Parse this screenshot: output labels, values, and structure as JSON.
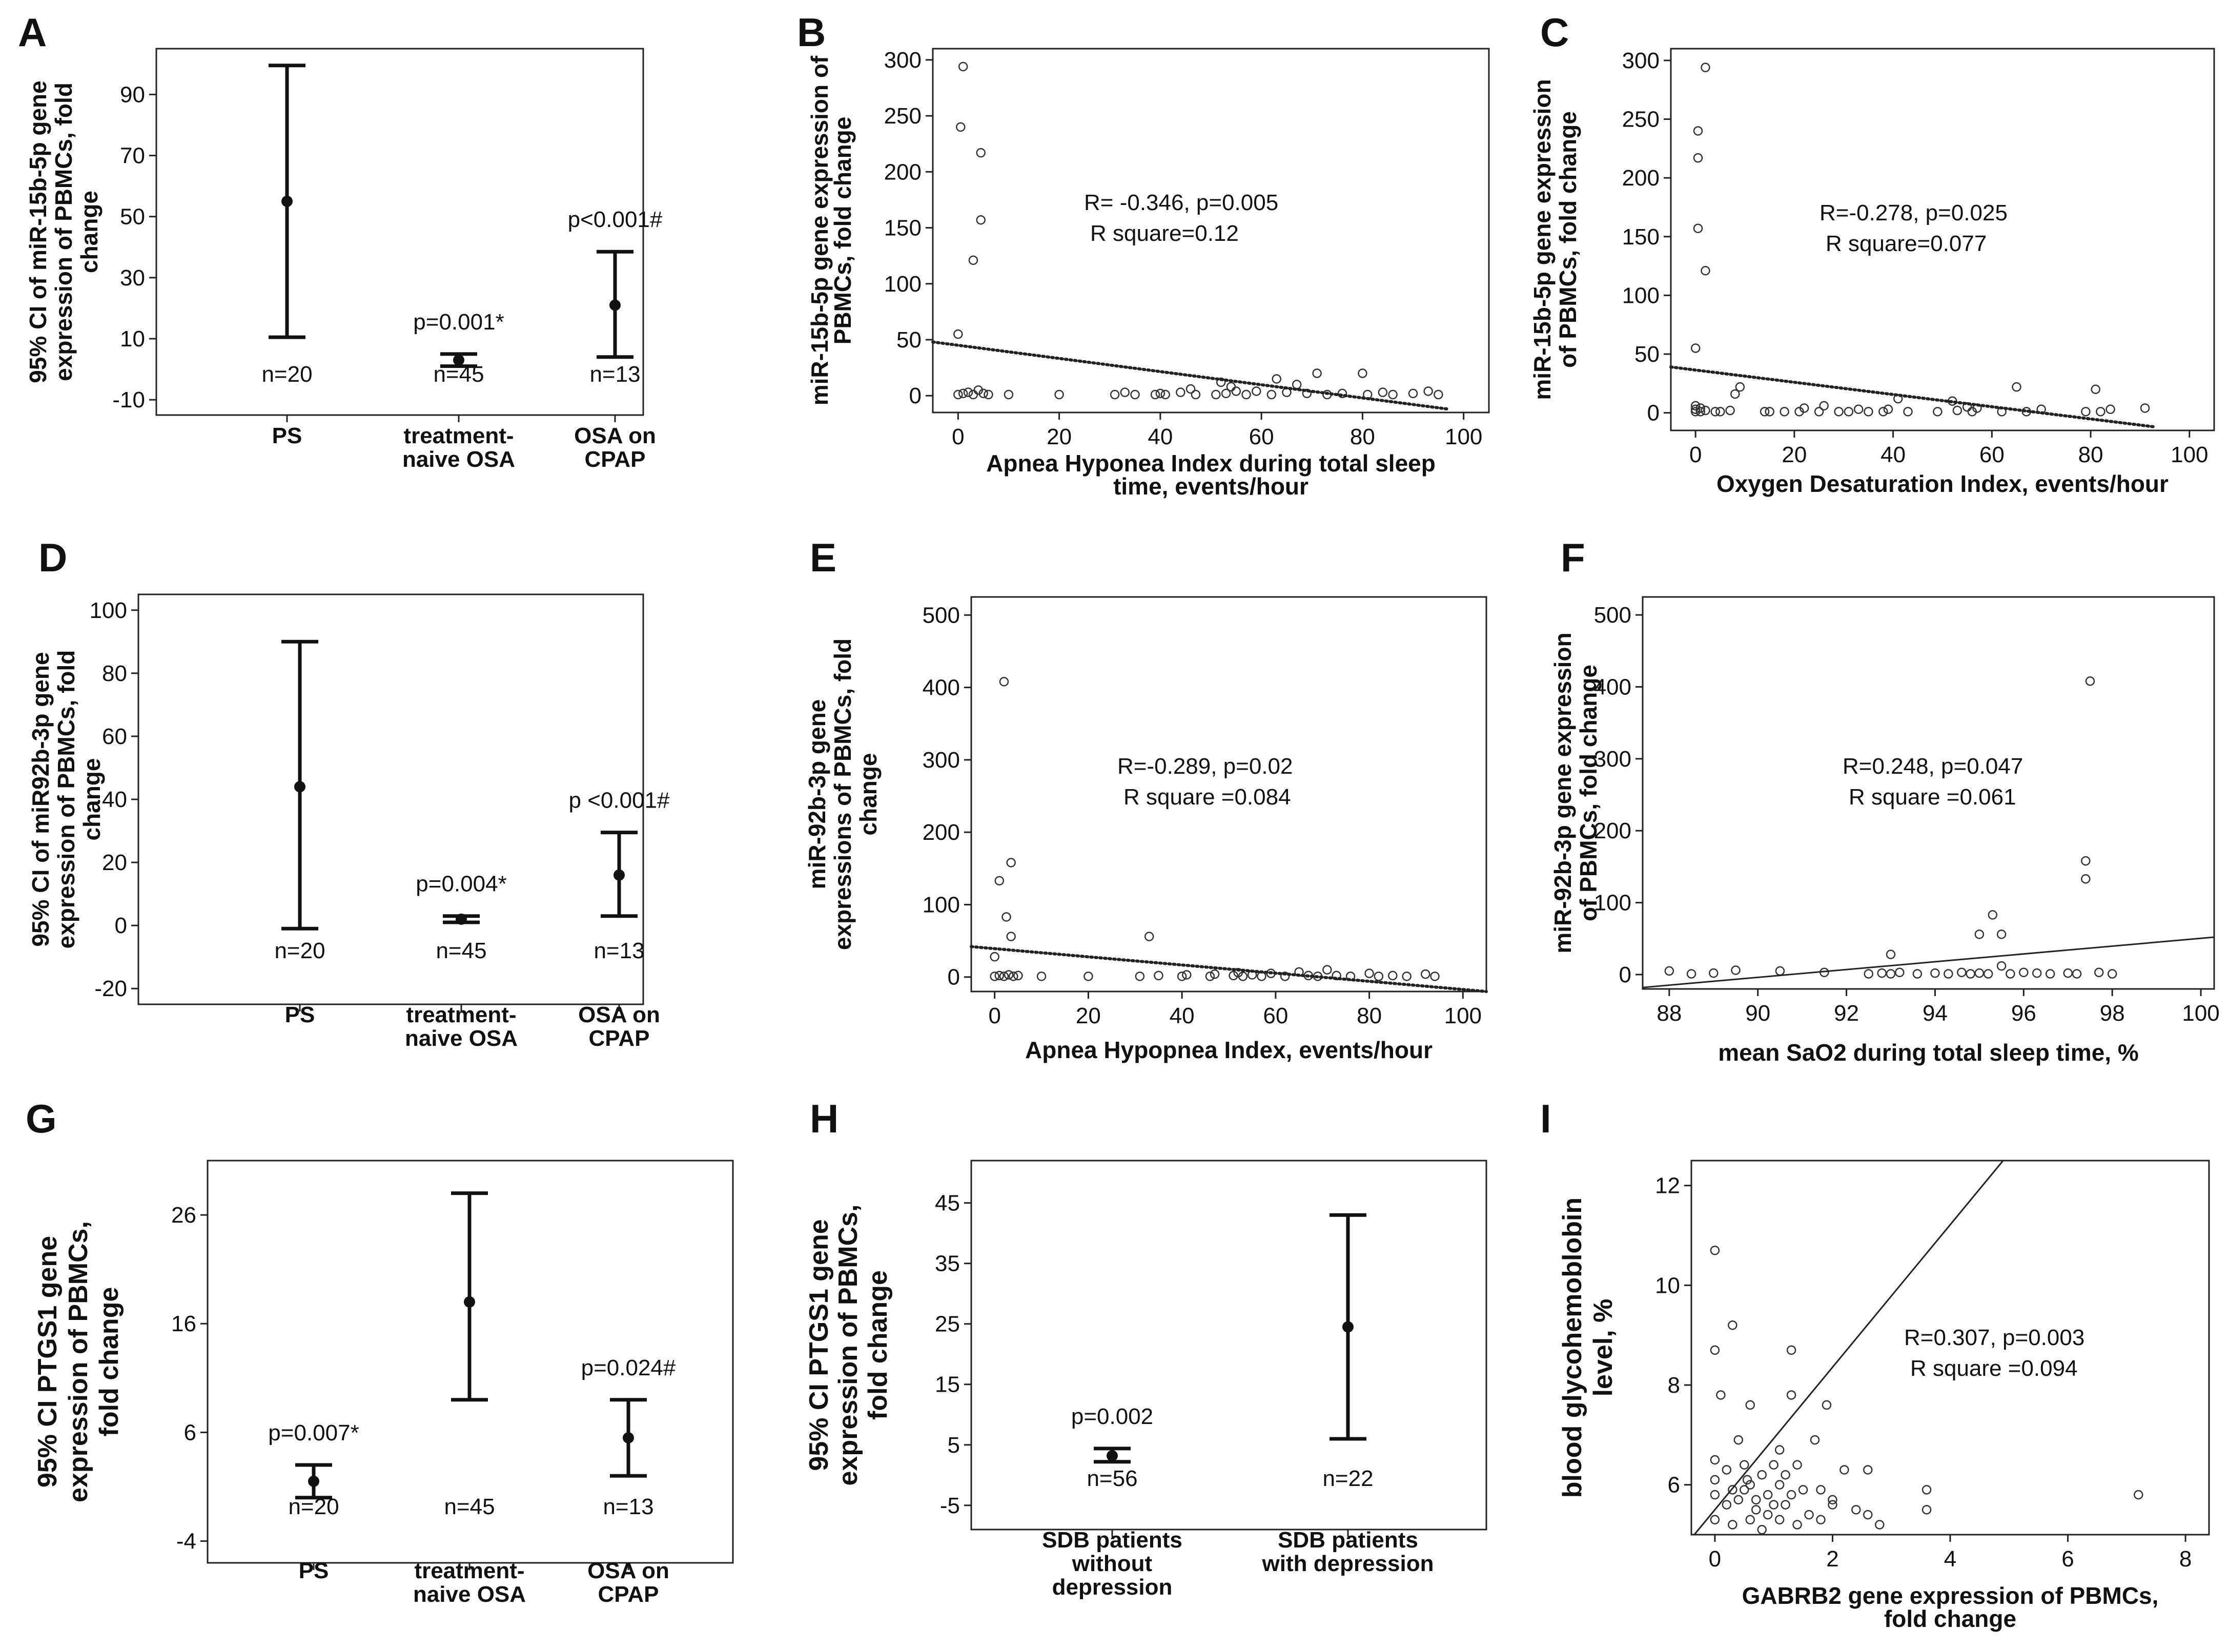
{
  "chart_data": [
    {
      "panel": "A",
      "type": "errorbar",
      "ylabel": "95% CI of miR-15b-5p gene expression of PBMCs, fold change",
      "ylim": [
        -15,
        105
      ],
      "yticks": [
        -10,
        10,
        30,
        50,
        70,
        90
      ],
      "categories": [
        "PS",
        "treatment-naive OSA",
        "OSA on CPAP"
      ],
      "values": [
        {
          "mean": 55,
          "low": 10.5,
          "high": 99.5,
          "n": "n=20",
          "note": ""
        },
        {
          "mean": 3,
          "low": 1,
          "high": 5,
          "n": "n=45",
          "note": "p=0.001*"
        },
        {
          "mean": 21,
          "low": 4,
          "high": 38.5,
          "n": "n=13",
          "note": "p<0.001#"
        }
      ]
    },
    {
      "panel": "B",
      "type": "scatter",
      "xlabel": "Apnea Hyponea Index during total sleep time, events/hour",
      "ylabel": "miR-15b-5p gene expression of PBMCs, fold change",
      "xlim": [
        -5,
        105
      ],
      "ylim": [
        -15,
        310
      ],
      "xticks": [
        0,
        20,
        40,
        60,
        80,
        100
      ],
      "yticks": [
        0,
        50,
        100,
        150,
        200,
        250,
        300
      ],
      "annotation": [
        "R= -0.346, p=0.005",
        "R square=0.12"
      ],
      "fit": {
        "style": "dotted",
        "x": [
          -5,
          97
        ],
        "y": [
          48,
          -12
        ]
      },
      "points": [
        [
          1,
          294
        ],
        [
          0.5,
          240
        ],
        [
          4.5,
          217
        ],
        [
          4.5,
          157
        ],
        [
          3,
          121
        ],
        [
          0,
          55
        ],
        [
          0,
          1
        ],
        [
          1,
          2
        ],
        [
          2,
          3
        ],
        [
          3,
          1
        ],
        [
          4,
          5
        ],
        [
          5,
          2
        ],
        [
          6,
          1
        ],
        [
          10,
          1
        ],
        [
          20,
          1
        ],
        [
          31,
          1
        ],
        [
          33,
          3
        ],
        [
          35,
          1
        ],
        [
          39,
          1
        ],
        [
          40,
          2
        ],
        [
          41,
          1
        ],
        [
          44,
          3
        ],
        [
          46,
          6
        ],
        [
          47,
          1
        ],
        [
          51,
          1
        ],
        [
          52,
          12
        ],
        [
          53,
          2
        ],
        [
          54,
          8
        ],
        [
          55,
          4
        ],
        [
          57,
          1
        ],
        [
          59,
          4
        ],
        [
          62,
          1
        ],
        [
          63,
          15
        ],
        [
          65,
          3
        ],
        [
          67,
          10
        ],
        [
          69,
          2
        ],
        [
          71,
          20
        ],
        [
          73,
          1
        ],
        [
          76,
          2
        ],
        [
          80,
          20
        ],
        [
          81,
          1
        ],
        [
          84,
          3
        ],
        [
          86,
          1
        ],
        [
          90,
          2
        ],
        [
          93,
          4
        ],
        [
          95,
          1
        ]
      ]
    },
    {
      "panel": "C",
      "type": "scatter",
      "xlabel": "Oxygen Desaturation Index, events/hour",
      "ylabel": "miR-15b-5p gene expression of PBMCs, fold change",
      "xlim": [
        -5,
        105
      ],
      "ylim": [
        -15,
        310
      ],
      "xticks": [
        0,
        20,
        40,
        60,
        80,
        100
      ],
      "yticks": [
        0,
        50,
        100,
        150,
        200,
        250,
        300
      ],
      "annotation": [
        "R=-0.278, p=0.025",
        "R square=0.077"
      ],
      "fit": {
        "style": "dotted",
        "x": [
          -5,
          93
        ],
        "y": [
          39,
          -12
        ]
      },
      "points": [
        [
          2,
          294
        ],
        [
          0.5,
          240
        ],
        [
          0.5,
          217
        ],
        [
          0.5,
          157
        ],
        [
          2,
          121
        ],
        [
          0,
          55
        ],
        [
          0,
          1
        ],
        [
          0,
          3
        ],
        [
          0,
          6
        ],
        [
          1,
          1
        ],
        [
          1,
          4
        ],
        [
          2,
          2
        ],
        [
          4,
          1
        ],
        [
          5,
          1
        ],
        [
          7,
          2
        ],
        [
          8,
          16
        ],
        [
          9,
          22
        ],
        [
          14,
          1
        ],
        [
          15,
          1
        ],
        [
          18,
          1
        ],
        [
          21,
          1
        ],
        [
          22,
          4
        ],
        [
          25,
          1
        ],
        [
          26,
          6
        ],
        [
          29,
          1
        ],
        [
          31,
          1
        ],
        [
          33,
          3
        ],
        [
          35,
          1
        ],
        [
          38,
          1
        ],
        [
          39,
          3
        ],
        [
          41,
          12
        ],
        [
          43,
          1
        ],
        [
          49,
          1
        ],
        [
          52,
          10
        ],
        [
          53,
          2
        ],
        [
          55,
          5
        ],
        [
          56,
          1
        ],
        [
          57,
          4
        ],
        [
          62,
          1
        ],
        [
          65,
          22
        ],
        [
          67,
          1
        ],
        [
          70,
          3
        ],
        [
          79,
          1
        ],
        [
          81,
          20
        ],
        [
          82,
          1
        ],
        [
          84,
          3
        ],
        [
          91,
          4
        ]
      ]
    },
    {
      "panel": "D",
      "type": "errorbar",
      "ylabel": "95% CI of miR92b-3p gene expression of PBMCs, fold change",
      "ylim": [
        -25,
        105
      ],
      "yticks": [
        -20,
        0,
        20,
        40,
        60,
        80,
        100
      ],
      "categories": [
        "PS",
        "treatment-naive OSA",
        "OSA on CPAP"
      ],
      "values": [
        {
          "mean": 44,
          "low": -1,
          "high": 90,
          "n": "n=20",
          "note": ""
        },
        {
          "mean": 2,
          "low": 1,
          "high": 3,
          "n": "n=45",
          "note": "p=0.004*"
        },
        {
          "mean": 16,
          "low": 3,
          "high": 29.5,
          "n": "n=13",
          "note": "p <0.001#"
        }
      ]
    },
    {
      "panel": "E",
      "type": "scatter",
      "xlabel": "Apnea Hypopnea Index, events/hour",
      "ylabel": "miR-92b-3p gene expressions of PBMCs, fold change",
      "xlim": [
        -5,
        105
      ],
      "ylim": [
        -20,
        525
      ],
      "xticks": [
        0,
        20,
        40,
        60,
        80,
        100
      ],
      "yticks": [
        0,
        100,
        200,
        300,
        400,
        500
      ],
      "annotation": [
        "R=-0.289, p=0.02",
        "R square =0.084"
      ],
      "fit": {
        "style": "dotted",
        "x": [
          -5,
          105
        ],
        "y": [
          42,
          -20
        ]
      },
      "points": [
        [
          2,
          408
        ],
        [
          3.5,
          158
        ],
        [
          1,
          133
        ],
        [
          2.5,
          83
        ],
        [
          3.5,
          56
        ],
        [
          0,
          28
        ],
        [
          0,
          1
        ],
        [
          1,
          2
        ],
        [
          2,
          1
        ],
        [
          3,
          3
        ],
        [
          4,
          1
        ],
        [
          5,
          2
        ],
        [
          10,
          1
        ],
        [
          20,
          1
        ],
        [
          31,
          1
        ],
        [
          33,
          56
        ],
        [
          35,
          2
        ],
        [
          40,
          1
        ],
        [
          41,
          3
        ],
        [
          46,
          1
        ],
        [
          47,
          4
        ],
        [
          51,
          2
        ],
        [
          52,
          6
        ],
        [
          53,
          1
        ],
        [
          55,
          3
        ],
        [
          57,
          1
        ],
        [
          59,
          5
        ],
        [
          62,
          1
        ],
        [
          65,
          7
        ],
        [
          67,
          2
        ],
        [
          69,
          1
        ],
        [
          71,
          10
        ],
        [
          73,
          2
        ],
        [
          76,
          1
        ],
        [
          80,
          5
        ],
        [
          82,
          1
        ],
        [
          85,
          2
        ],
        [
          88,
          1
        ],
        [
          92,
          4
        ],
        [
          94,
          1
        ]
      ]
    },
    {
      "panel": "F",
      "type": "scatter",
      "xlabel": "mean SaO2 during total sleep time, %",
      "ylabel": "miR-92b-3p gene expression of PBMCs, fold change",
      "xlim": [
        87.4,
        100.3
      ],
      "ylim": [
        -20,
        525
      ],
      "xticks": [
        88,
        90,
        92,
        94,
        96,
        98,
        100
      ],
      "yticks": [
        0,
        100,
        200,
        300,
        400,
        500
      ],
      "annotation": [
        "R=0.248, p=0.047",
        "R square =0.061"
      ],
      "fit": {
        "style": "solid",
        "x": [
          87.4,
          100.3
        ],
        "y": [
          -18,
          52
        ]
      },
      "points": [
        [
          97.5,
          408
        ],
        [
          97.4,
          158
        ],
        [
          97.4,
          133
        ],
        [
          95.3,
          83
        ],
        [
          95,
          56
        ],
        [
          95.5,
          56
        ],
        [
          93,
          28
        ],
        [
          88,
          5
        ],
        [
          88.5,
          1
        ],
        [
          89,
          2
        ],
        [
          89.5,
          6
        ],
        [
          90.5,
          5
        ],
        [
          91.5,
          3
        ],
        [
          92.5,
          1
        ],
        [
          92.8,
          2
        ],
        [
          93,
          1
        ],
        [
          93.2,
          3
        ],
        [
          93.6,
          1
        ],
        [
          94,
          2
        ],
        [
          94.3,
          1
        ],
        [
          94.6,
          3
        ],
        [
          94.8,
          1
        ],
        [
          95,
          2
        ],
        [
          95.2,
          1
        ],
        [
          95.5,
          12
        ],
        [
          95.7,
          1
        ],
        [
          96,
          3
        ],
        [
          96.3,
          2
        ],
        [
          96.6,
          1
        ],
        [
          97,
          2
        ],
        [
          97.2,
          1
        ],
        [
          97.7,
          3
        ],
        [
          98,
          1
        ]
      ]
    },
    {
      "panel": "G",
      "type": "errorbar",
      "ylabel": "95% CI PTGS1 gene expression of PBMCs, fold change",
      "ylim": [
        -6,
        31
      ],
      "yticks": [
        -4,
        6,
        16,
        26
      ],
      "categories": [
        "PS",
        "treatment-naive OSA",
        "OSA on CPAP"
      ],
      "values": [
        {
          "mean": 1.5,
          "low": 0,
          "high": 3,
          "n": "n=20",
          "note": "p=0.007*"
        },
        {
          "mean": 18,
          "low": 9,
          "high": 28,
          "n": "n=45",
          "note": ""
        },
        {
          "mean": 5.5,
          "low": 2,
          "high": 9,
          "n": "n=13",
          "note": "p=0.024#"
        }
      ]
    },
    {
      "panel": "H",
      "type": "errorbar",
      "ylabel": "95% CI PTGS1 gene expression of PBMCs, fold change",
      "ylim": [
        -9,
        52
      ],
      "yticks": [
        -5,
        5,
        15,
        25,
        35,
        45
      ],
      "categories": [
        "SDB patients without depression",
        "SDB patients with depression"
      ],
      "values": [
        {
          "mean": 3.2,
          "low": 2.2,
          "high": 4.4,
          "n": "n=56",
          "note": "p=0.002"
        },
        {
          "mean": 24.5,
          "low": 6,
          "high": 43,
          "n": "n=22",
          "note": ""
        }
      ]
    },
    {
      "panel": "I",
      "type": "scatter",
      "xlabel": "GABRB2 gene expression of PBMCs, fold change",
      "ylabel": "blood glycohemoblobin level, %",
      "xlim": [
        -0.4,
        8.4
      ],
      "ylim": [
        5,
        12.5
      ],
      "xticks": [
        0,
        2,
        4,
        6,
        8
      ],
      "yticks": [
        6,
        8,
        10,
        12
      ],
      "annotation": [
        "R=0.307, p=0.003",
        "R square =0.094"
      ],
      "fit": {
        "style": "solid",
        "x": [
          -0.35,
          4.9
        ],
        "y": [
          5.0,
          12.5
        ]
      },
      "points": [
        [
          0,
          10.7
        ],
        [
          0.3,
          9.2
        ],
        [
          0,
          8.7
        ],
        [
          1.3,
          8.7
        ],
        [
          0.1,
          7.8
        ],
        [
          0.6,
          7.6
        ],
        [
          1.3,
          7.8
        ],
        [
          1.9,
          7.6
        ],
        [
          0.4,
          6.9
        ],
        [
          1.1,
          6.7
        ],
        [
          1.7,
          6.9
        ],
        [
          0,
          6.5
        ],
        [
          0.2,
          6.3
        ],
        [
          0.5,
          6.4
        ],
        [
          0.8,
          6.2
        ],
        [
          1,
          6.4
        ],
        [
          1.2,
          6.2
        ],
        [
          1.4,
          6.4
        ],
        [
          2.2,
          6.3
        ],
        [
          2.6,
          6.3
        ],
        [
          0,
          6.1
        ],
        [
          0.3,
          5.9
        ],
        [
          0.6,
          6.0
        ],
        [
          0.9,
          5.8
        ],
        [
          1.1,
          6.0
        ],
        [
          1.5,
          5.9
        ],
        [
          1.8,
          5.9
        ],
        [
          2.0,
          5.7
        ],
        [
          2.4,
          5.5
        ],
        [
          3.6,
          5.9
        ],
        [
          7.2,
          5.8
        ],
        [
          0,
          5.8
        ],
        [
          0.2,
          5.6
        ],
        [
          0.4,
          5.7
        ],
        [
          0.7,
          5.5
        ],
        [
          0.9,
          5.4
        ],
        [
          1.2,
          5.6
        ],
        [
          1.6,
          5.4
        ],
        [
          2.0,
          5.6
        ],
        [
          0,
          5.3
        ],
        [
          0.3,
          5.2
        ],
        [
          0.6,
          5.3
        ],
        [
          0.8,
          5.1
        ],
        [
          1.1,
          5.3
        ],
        [
          1.4,
          5.2
        ],
        [
          1.8,
          5.3
        ],
        [
          2.6,
          5.4
        ],
        [
          2.8,
          5.2
        ],
        [
          3.6,
          5.5
        ],
        [
          0.5,
          5.9
        ],
        [
          0.7,
          5.7
        ],
        [
          1.0,
          5.6
        ],
        [
          1.3,
          5.8
        ],
        [
          0.55,
          6.1
        ]
      ]
    }
  ]
}
